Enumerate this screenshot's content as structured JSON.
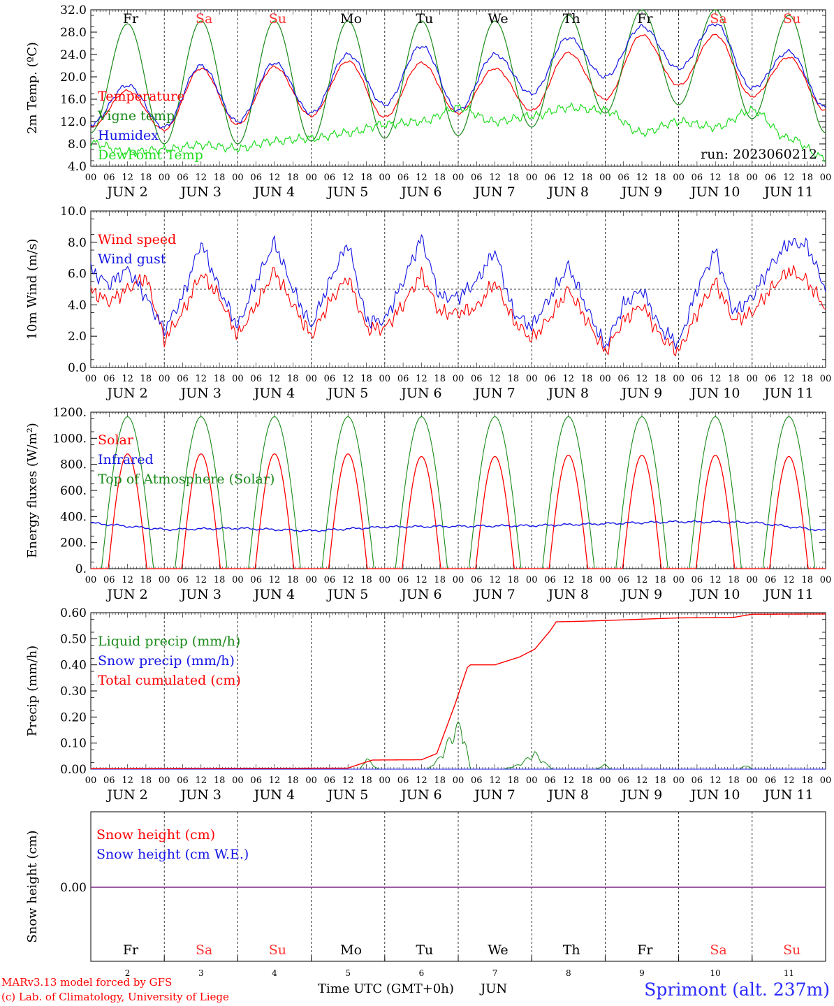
{
  "colors": {
    "red": "#ff0000",
    "green": "#1a8a1a",
    "blue": "#1414e6",
    "lime": "#22dd22",
    "purple": "#7b3c9c",
    "weekend": "#ff3333",
    "weekday": "#000000"
  },
  "days": {
    "names": [
      "Fr",
      "Sa",
      "Su",
      "Mo",
      "Tu",
      "We",
      "Th",
      "Fr",
      "Sa",
      "Su"
    ],
    "weekend": [
      false,
      true,
      true,
      false,
      false,
      false,
      false,
      false,
      true,
      true
    ],
    "date_labels": [
      "JUN  2",
      "JUN  3",
      "JUN  4",
      "JUN  5",
      "JUN  6",
      "JUN  7",
      "JUN  8",
      "JUN  9",
      "JUN 10",
      "JUN 11"
    ],
    "numbers": [
      "2",
      "3",
      "4",
      "5",
      "6",
      "7",
      "8",
      "9",
      "10",
      "11"
    ],
    "hour_ticks": [
      "00",
      "06",
      "12",
      "18"
    ],
    "final_hour": "00"
  },
  "footer": {
    "credit_1": "MARv3.13 model forced by GFS",
    "credit_2": "(c) Lab. of Climatology, University of Liege",
    "xlabel": "Time UTC (GMT+0h)",
    "month": "JUN",
    "station": "Sprimont (alt. 237m)"
  },
  "chart_data": [
    {
      "type": "line",
      "ylabel": "2m Temp. (ºC)",
      "ylim": [
        4.0,
        32.0
      ],
      "yticks": [
        "4.0",
        "8.0",
        "12.0",
        "16.0",
        "20.0",
        "24.0",
        "28.0",
        "32.0"
      ],
      "annotation": "run: 2023060212",
      "x_unit": "hours since 2023-06-02 00 UTC",
      "x": [
        0,
        12,
        24,
        36,
        48,
        60,
        72,
        84,
        96,
        108,
        120,
        132,
        144,
        156,
        168,
        180,
        192,
        204,
        216,
        228,
        240
      ],
      "series": [
        {
          "name": "Temperature",
          "color": "red",
          "values": [
            11.0,
            17.5,
            10.5,
            21.5,
            11.5,
            21.8,
            13.0,
            22.8,
            12.8,
            22.5,
            13.5,
            21.5,
            14.0,
            24.3,
            16.0,
            27.5,
            18.5,
            27.5,
            16.5,
            23.5,
            14.0
          ]
        },
        {
          "name": "Vigne temp",
          "color": "green",
          "values": [
            10.0,
            29.5,
            8.0,
            30.0,
            8.0,
            30.0,
            8.5,
            30.0,
            9.0,
            30.0,
            9.5,
            30.0,
            11.0,
            31.0,
            13.5,
            32.0,
            15.0,
            32.0,
            12.5,
            31.0,
            10.0
          ]
        },
        {
          "name": "Humidex",
          "color": "blue",
          "values": [
            11.5,
            18.5,
            11.0,
            22.0,
            12.0,
            22.5,
            13.5,
            24.0,
            15.0,
            25.5,
            14.0,
            24.0,
            17.0,
            27.0,
            20.0,
            29.0,
            21.5,
            29.5,
            18.0,
            24.5,
            14.5
          ]
        },
        {
          "name": "DewPoint Temp",
          "color": "lime",
          "values": [
            8.2,
            6.5,
            7.0,
            7.8,
            7.2,
            8.5,
            9.0,
            10.0,
            11.5,
            12.0,
            14.5,
            12.0,
            13.0,
            14.5,
            14.0,
            10.0,
            12.0,
            11.0,
            14.0,
            9.0,
            5.5
          ]
        }
      ]
    },
    {
      "type": "line",
      "ylabel": "10m Wind (m/s)",
      "ylim": [
        0.0,
        10.0
      ],
      "yticks": [
        "0.0",
        "2.0",
        "4.0",
        "6.0",
        "8.0",
        "10.0"
      ],
      "reference_line": 5.0,
      "x_unit": "hours since 2023-06-02 00 UTC",
      "x": [
        0,
        6,
        12,
        18,
        24,
        30,
        36,
        42,
        48,
        54,
        60,
        66,
        72,
        78,
        84,
        90,
        96,
        102,
        108,
        114,
        120,
        126,
        132,
        138,
        144,
        150,
        156,
        162,
        168,
        174,
        180,
        186,
        192,
        198,
        204,
        210,
        216,
        222,
        228,
        234,
        240
      ],
      "series": [
        {
          "name": "Wind speed",
          "color": "red",
          "values": [
            4.9,
            4.2,
            5.0,
            5.8,
            1.8,
            3.5,
            6.0,
            4.5,
            2.0,
            4.0,
            6.2,
            4.0,
            2.0,
            4.2,
            5.8,
            2.5,
            2.5,
            4.0,
            6.0,
            3.5,
            3.5,
            3.8,
            5.5,
            3.0,
            1.8,
            3.2,
            5.0,
            3.0,
            1.0,
            3.0,
            4.0,
            2.0,
            1.0,
            3.5,
            5.5,
            3.0,
            3.5,
            5.0,
            6.2,
            5.5,
            3.8
          ]
        },
        {
          "name": "Wind gust",
          "color": "blue",
          "values": [
            6.2,
            5.3,
            6.3,
            4.5,
            2.4,
            4.5,
            8.0,
            5.0,
            2.6,
            5.5,
            8.0,
            5.0,
            2.6,
            5.5,
            8.0,
            3.0,
            3.0,
            5.5,
            8.3,
            4.5,
            4.5,
            5.5,
            7.5,
            3.5,
            2.6,
            4.5,
            6.5,
            3.8,
            1.3,
            4.0,
            5.0,
            2.5,
            1.5,
            5.0,
            7.5,
            3.5,
            4.5,
            6.5,
            8.0,
            7.8,
            5.0
          ]
        }
      ]
    },
    {
      "type": "line",
      "ylabel": "Energy fluxes (W/m²)",
      "ylim": [
        0,
        1200
      ],
      "yticks": [
        "0.",
        "200.",
        "400.",
        "600.",
        "800.",
        "1000.",
        "1200."
      ],
      "x_unit": "hours since 2023-06-02 00 UTC",
      "daylight_hours": [
        3.5,
        20.5
      ],
      "series": [
        {
          "name": "Solar",
          "color": "red",
          "daily_peak": [
            880,
            880,
            880,
            880,
            860,
            860,
            870,
            870,
            870,
            860
          ]
        },
        {
          "name": "Infrared",
          "color": "blue",
          "x": [
            0,
            24,
            48,
            72,
            96,
            120,
            144,
            168,
            192,
            216,
            240
          ],
          "values": [
            350,
            300,
            310,
            290,
            320,
            325,
            330,
            345,
            360,
            355,
            290
          ]
        },
        {
          "name": "Top of Atmosphere (Solar)",
          "color": "green",
          "daily_peak": [
            1165,
            1165,
            1165,
            1165,
            1165,
            1165,
            1165,
            1165,
            1165,
            1165
          ]
        }
      ]
    },
    {
      "type": "line",
      "ylabel": "Precip (mm/h)",
      "ylim": [
        0.0,
        0.6
      ],
      "yticks": [
        "0.00",
        "0.10",
        "0.20",
        "0.30",
        "0.40",
        "0.50",
        "0.60"
      ],
      "x_unit": "hours since 2023-06-02 00 UTC",
      "series": [
        {
          "name": "Liquid precip (mm/h)",
          "color": "green",
          "x": [
            0,
            88,
            90,
            92,
            94,
            110,
            114,
            118,
            121,
            124,
            135,
            140,
            145,
            148,
            151,
            165,
            168,
            170,
            190,
            212,
            214,
            216,
            240
          ],
          "values": [
            0,
            0,
            0.05,
            0.02,
            0,
            0,
            0.05,
            0.15,
            0.2,
            0,
            0,
            0.02,
            0.07,
            0.03,
            0,
            0,
            0.02,
            0,
            0,
            0,
            0.02,
            0,
            0
          ]
        },
        {
          "name": "Snow precip (mm/h)",
          "color": "blue",
          "x": [
            0,
            240
          ],
          "values": [
            0,
            0
          ]
        },
        {
          "name": "Total cumulated (cm)",
          "color": "red",
          "x": [
            0,
            84,
            88,
            92,
            108,
            113,
            119,
            123,
            124,
            132,
            140,
            145,
            150,
            152,
            160,
            168,
            192,
            210,
            216,
            240
          ],
          "values": [
            0.002,
            0.004,
            0.02,
            0.035,
            0.036,
            0.06,
            0.25,
            0.39,
            0.4,
            0.4,
            0.43,
            0.46,
            0.53,
            0.565,
            0.567,
            0.57,
            0.58,
            0.582,
            0.594,
            0.595
          ]
        }
      ]
    },
    {
      "type": "line",
      "ylabel": "Snow height (cm)",
      "yticks": [
        "0.00"
      ],
      "x_unit": "hours since 2023-06-02 00 UTC",
      "x": [
        0,
        240
      ],
      "series": [
        {
          "name": "Snow height (cm)",
          "color": "red",
          "values": [
            0,
            0
          ]
        },
        {
          "name": "Snow height (cm W.E.)",
          "color": "blue",
          "values": [
            0,
            0
          ]
        }
      ]
    }
  ]
}
